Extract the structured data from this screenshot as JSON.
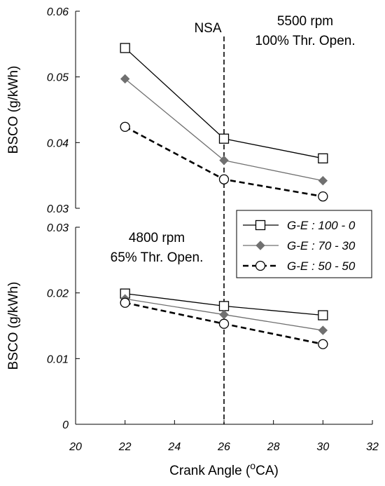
{
  "chart_data": [
    {
      "type": "line",
      "panel": "top",
      "ylabel": "BSCO (g/kWh)",
      "ylim": [
        0.03,
        0.06
      ],
      "yticks": [
        "0.06",
        "0.05",
        "0.04",
        "0.03"
      ],
      "ytick_values": [
        0.06,
        0.05,
        0.04,
        0.03
      ],
      "annotation_lines": [
        "5500 rpm",
        "100% Thr. Open."
      ],
      "vline_label": "NSA",
      "vline_x": 26,
      "x": [
        22,
        26,
        30
      ],
      "series": [
        {
          "name": "G-E : 100 - 0",
          "values": [
            0.0544,
            0.0406,
            0.0376
          ],
          "color": "#000000",
          "marker": "square",
          "dash": "solid"
        },
        {
          "name": "G-E : 70 - 30",
          "values": [
            0.0497,
            0.0373,
            0.0342
          ],
          "color": "#707070",
          "marker": "diamond",
          "dash": "solid"
        },
        {
          "name": "G-E : 50 - 50",
          "values": [
            0.0424,
            0.0344,
            0.0318
          ],
          "color": "#000000",
          "marker": "circle",
          "dash": "dashed"
        }
      ]
    },
    {
      "type": "line",
      "panel": "bottom",
      "ylabel": "BSCO (g/kWh)",
      "ylim": [
        0,
        0.03
      ],
      "yticks": [
        "0.03",
        "0.02",
        "0.01",
        "0"
      ],
      "ytick_values": [
        0.03,
        0.02,
        0.01,
        0
      ],
      "annotation_lines": [
        "4800 rpm",
        "65% Thr. Open."
      ],
      "xlabel": "Crank Angle (",
      "xlabel_super": "o",
      "xlabel_after": "CA)",
      "xlim": [
        20,
        32
      ],
      "xticks": [
        "20",
        "22",
        "24",
        "26",
        "28",
        "30",
        "32"
      ],
      "xtick_values": [
        20,
        22,
        24,
        26,
        28,
        30,
        32
      ],
      "x": [
        22,
        26,
        30
      ],
      "series": [
        {
          "name": "G-E : 100 - 0",
          "values": [
            0.0199,
            0.018,
            0.0166
          ],
          "color": "#000000",
          "marker": "square",
          "dash": "solid"
        },
        {
          "name": "G-E : 70 - 30",
          "values": [
            0.0191,
            0.0167,
            0.0143
          ],
          "color": "#707070",
          "marker": "diamond",
          "dash": "solid"
        },
        {
          "name": "G-E : 50 - 50",
          "values": [
            0.0185,
            0.0153,
            0.0122
          ],
          "color": "#000000",
          "marker": "circle",
          "dash": "dashed"
        }
      ]
    }
  ],
  "legend": {
    "placement": "right-middle",
    "entries": [
      "G-E : 100 - 0",
      "G-E : 70 - 30",
      "G-E : 50 - 50"
    ]
  }
}
